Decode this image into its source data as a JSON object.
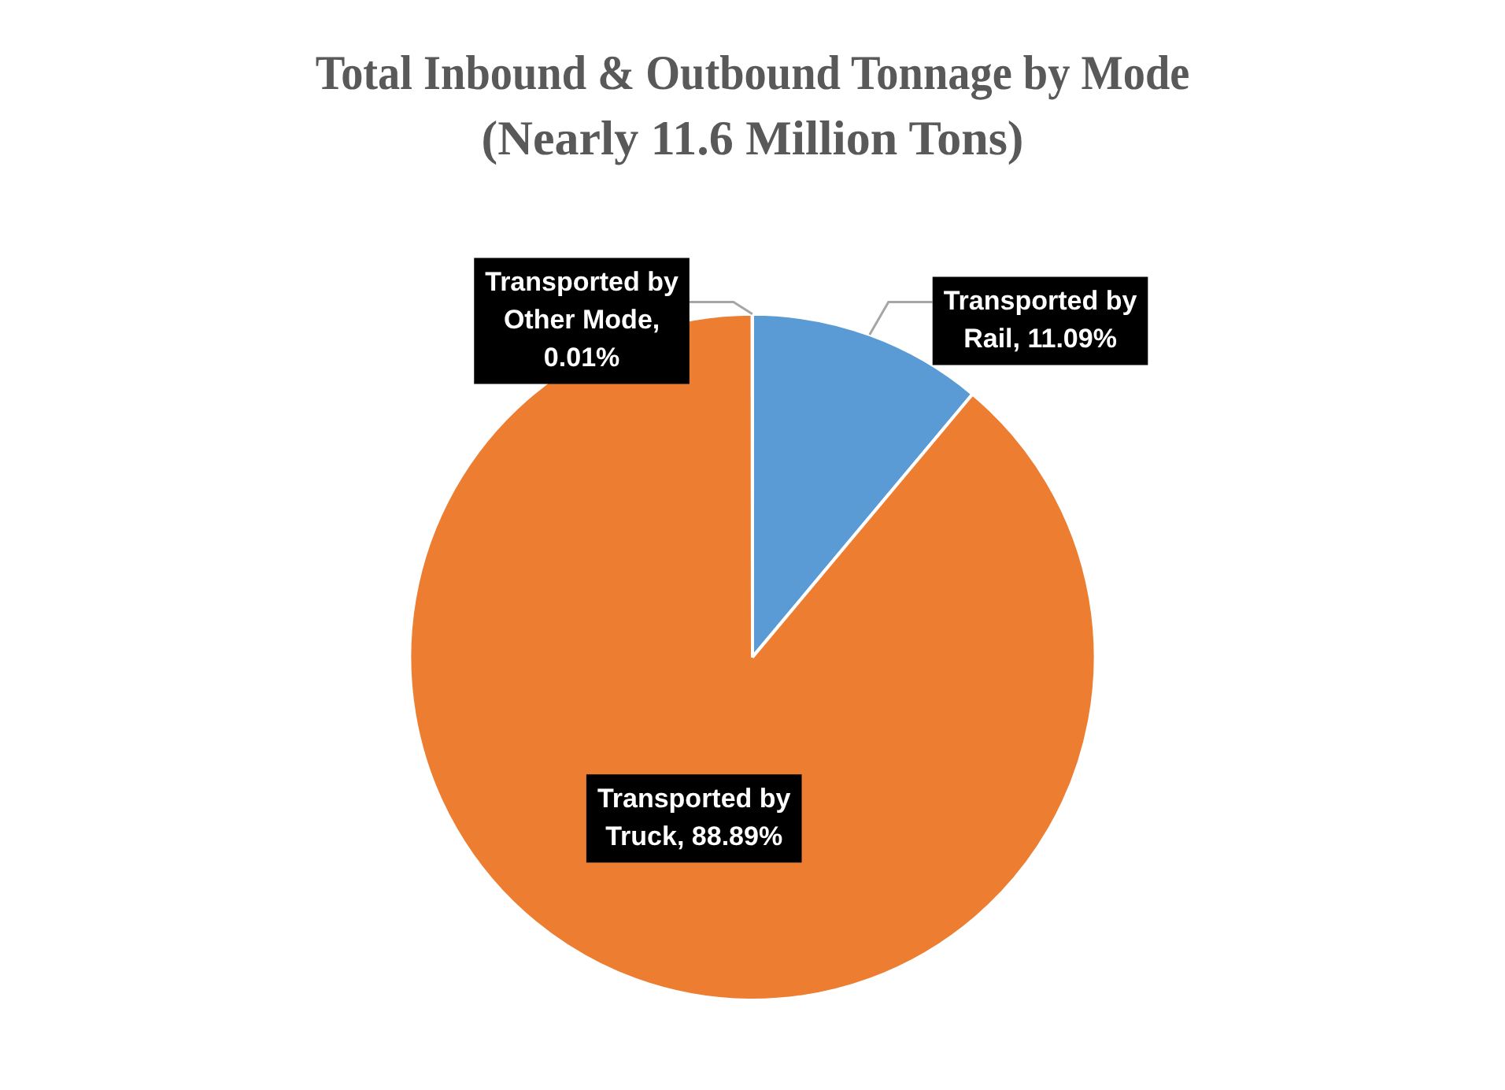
{
  "chart_data": {
    "type": "pie",
    "title": "Total Inbound & Outbound Tonnage by Mode",
    "subtitle": "(Nearly 11.6 Million Tons)",
    "categories": [
      null,
      null,
      null
    ],
    "values": [
      11.09,
      88.89,
      0.01
    ],
    "value_labels": [
      "Transported by Rail, 11.09%",
      "Transported by Truck, 88.89%",
      "Transported by Other Mode, 0.01%"
    ],
    "colors": [
      "#5b9bd5",
      "#ed7d31",
      "#a5a5a5"
    ],
    "legend": false
  }
}
